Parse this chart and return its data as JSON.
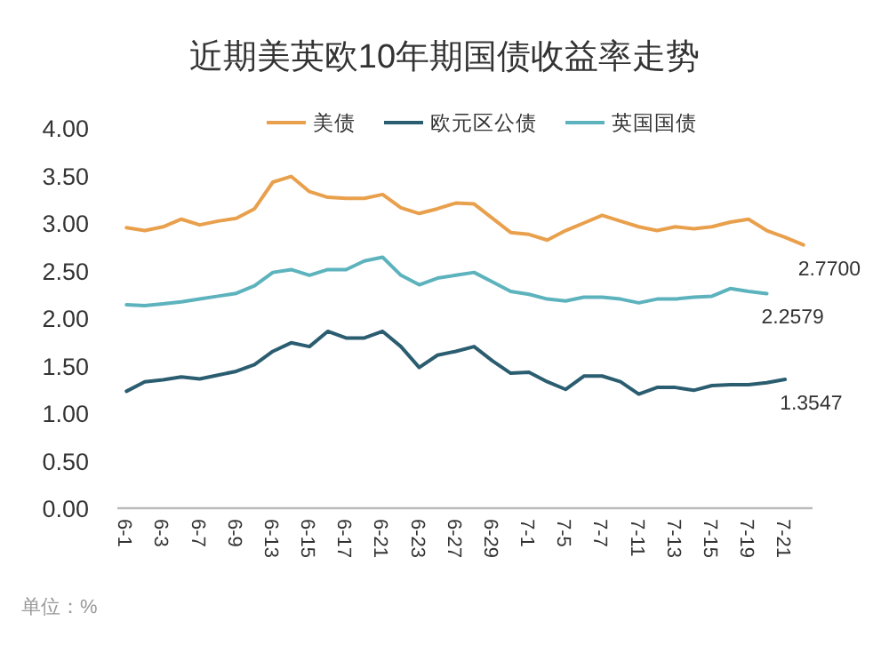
{
  "chart_data": {
    "type": "line",
    "title": "近期美英欧10年期国债收益率走势",
    "categories": [
      "6-1",
      null,
      "6-3",
      null,
      "6-7",
      null,
      "6-9",
      null,
      "6-13",
      null,
      "6-15",
      null,
      "6-17",
      null,
      "6-21",
      null,
      "6-23",
      null,
      "6-27",
      null,
      "6-29",
      null,
      "7-1",
      null,
      "7-5",
      null,
      "7-7",
      null,
      "7-11",
      null,
      "7-13",
      null,
      "7-15",
      null,
      "7-19",
      null,
      "7-21",
      null
    ],
    "series": [
      {
        "name": "美债",
        "color": "#e9a04c",
        "values": [
          2.95,
          2.92,
          2.96,
          3.04,
          2.98,
          3.02,
          3.05,
          3.15,
          3.43,
          3.49,
          3.33,
          3.27,
          3.26,
          3.26,
          3.3,
          3.16,
          3.1,
          3.15,
          3.21,
          3.2,
          3.05,
          2.9,
          2.88,
          2.82,
          2.92,
          3.0,
          3.08,
          3.02,
          2.96,
          2.92,
          2.96,
          2.94,
          2.96,
          3.01,
          3.04,
          2.92,
          2.85,
          2.77
        ],
        "value_labels": [
          null,
          null,
          null,
          null,
          null,
          null,
          null,
          null,
          null,
          null,
          null,
          null,
          null,
          null,
          null,
          null,
          null,
          null,
          null,
          null,
          null,
          null,
          null,
          null,
          null,
          null,
          null,
          null,
          null,
          null,
          null,
          null,
          null,
          null,
          null,
          null,
          null,
          "2.7700"
        ]
      },
      {
        "name": "欧元区公债",
        "color": "#2b5d70",
        "values": [
          1.23,
          1.33,
          1.35,
          1.38,
          1.36,
          1.4,
          1.44,
          1.51,
          1.65,
          1.74,
          1.7,
          1.86,
          1.79,
          1.79,
          1.86,
          1.7,
          1.48,
          1.61,
          1.65,
          1.7,
          1.55,
          1.42,
          1.43,
          1.33,
          1.25,
          1.39,
          1.39,
          1.33,
          1.2,
          1.27,
          1.27,
          1.24,
          1.29,
          1.3,
          1.3,
          1.32,
          1.3547,
          null
        ],
        "value_labels": [
          null,
          null,
          null,
          null,
          null,
          null,
          null,
          null,
          null,
          null,
          null,
          null,
          null,
          null,
          null,
          null,
          null,
          null,
          null,
          null,
          null,
          null,
          null,
          null,
          null,
          null,
          null,
          null,
          null,
          null,
          null,
          null,
          null,
          null,
          null,
          null,
          "1.3547",
          null
        ]
      },
      {
        "name": "英国国债",
        "color": "#5db3bd",
        "values": [
          2.14,
          2.13,
          2.15,
          2.17,
          2.2,
          2.23,
          2.26,
          2.34,
          2.48,
          2.51,
          2.45,
          2.51,
          2.51,
          2.6,
          2.64,
          2.45,
          2.35,
          2.42,
          2.45,
          2.48,
          2.38,
          2.28,
          2.25,
          2.2,
          2.18,
          2.22,
          2.22,
          2.2,
          2.16,
          2.2,
          2.2,
          2.22,
          2.23,
          2.31,
          2.28,
          2.2579,
          null,
          null
        ],
        "value_labels": [
          null,
          null,
          null,
          null,
          null,
          null,
          null,
          null,
          null,
          null,
          null,
          null,
          null,
          null,
          null,
          null,
          null,
          null,
          null,
          null,
          null,
          null,
          null,
          null,
          null,
          null,
          null,
          null,
          null,
          null,
          null,
          null,
          null,
          null,
          null,
          "2.2579",
          null,
          null
        ]
      }
    ],
    "ylim": [
      0,
      4
    ],
    "yticks": [
      {
        "value": 0,
        "label": "0.00"
      },
      {
        "value": 0.5,
        "label": "0.50"
      },
      {
        "value": 1,
        "label": "1.00"
      },
      {
        "value": 1.5,
        "label": "1.50"
      },
      {
        "value": 2,
        "label": "2.00"
      },
      {
        "value": 2.5,
        "label": "2.50"
      },
      {
        "value": 3,
        "label": "3.00"
      },
      {
        "value": 3.5,
        "label": "3.50"
      },
      {
        "value": 4,
        "label": "4.00"
      }
    ],
    "legend": "top",
    "annotations": [
      "单位：%"
    ]
  }
}
